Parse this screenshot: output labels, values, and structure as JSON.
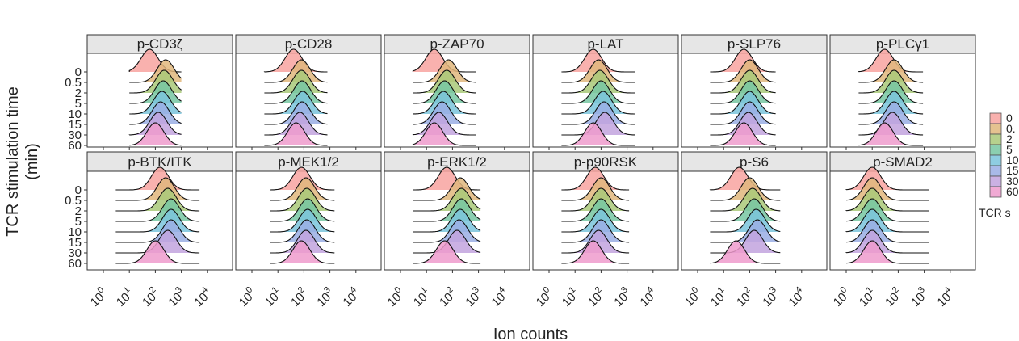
{
  "chart_data": {
    "type": "ridgeline",
    "xlabel": "Ion counts",
    "ylabel": "TCR stimulation time\n(min)",
    "x_scale": "log10",
    "x_ticks": [
      1,
      10,
      100,
      1000,
      10000
    ],
    "x_tick_base": "10",
    "x_tick_exponents": [
      "0",
      "1",
      "2",
      "3",
      "4"
    ],
    "time_levels": [
      "0",
      "0.5",
      "2",
      "5",
      "10",
      "15",
      "30",
      "60"
    ],
    "legend": {
      "title": "TCR s",
      "labels": [
        "0",
        "0.",
        "2",
        "5",
        "10",
        "15",
        "30",
        "60"
      ]
    },
    "colors": [
      "#f8a3a0",
      "#e0b77c",
      "#a9c979",
      "#77c7a2",
      "#7ac4dc",
      "#9aaee4",
      "#c2a3de",
      "#ef9bcd"
    ],
    "panels": [
      {
        "title": "p-CD3ζ",
        "row": 0,
        "col": 0,
        "range": [
          10,
          1000
        ],
        "peaks": [
          60,
          250,
          220,
          200,
          180,
          160,
          130,
          100
        ]
      },
      {
        "title": "p-CD28",
        "row": 0,
        "col": 1,
        "range": [
          3,
          800
        ],
        "peaks": [
          40,
          80,
          80,
          85,
          90,
          85,
          70,
          50
        ]
      },
      {
        "title": "p-ZAP70",
        "row": 0,
        "col": 2,
        "range": [
          3,
          800
        ],
        "peaks": [
          20,
          70,
          60,
          50,
          45,
          40,
          30,
          20
        ]
      },
      {
        "title": "p-LAT",
        "row": 0,
        "col": 3,
        "range": [
          3,
          2000
        ],
        "peaks": [
          50,
          80,
          90,
          100,
          120,
          130,
          140,
          50
        ]
      },
      {
        "title": "p-SLP76",
        "row": 0,
        "col": 4,
        "range": [
          3,
          1000
        ],
        "peaks": [
          60,
          100,
          100,
          100,
          100,
          100,
          90,
          60
        ]
      },
      {
        "title": "p-PLCγ1",
        "row": 0,
        "col": 5,
        "range": [
          3,
          900
        ],
        "peaks": [
          30,
          70,
          70,
          70,
          70,
          70,
          60,
          30
        ]
      },
      {
        "title": "p-BTK/ITK",
        "row": 1,
        "col": 0,
        "range": [
          3,
          5000
        ],
        "peaks": [
          150,
          250,
          300,
          400,
          400,
          400,
          300,
          100
        ]
      },
      {
        "title": "p-MEK1/2",
        "row": 1,
        "col": 1,
        "range": [
          5,
          1500
        ],
        "peaks": [
          80,
          120,
          130,
          140,
          140,
          130,
          120,
          80
        ]
      },
      {
        "title": "p-ERK1/2",
        "row": 1,
        "col": 2,
        "range": [
          3,
          1200
        ],
        "peaks": [
          60,
          200,
          220,
          220,
          200,
          180,
          150,
          50
        ]
      },
      {
        "title": "p-p90RSK",
        "row": 1,
        "col": 3,
        "range": [
          3,
          1200
        ],
        "peaks": [
          60,
          100,
          100,
          100,
          100,
          100,
          80,
          50
        ]
      },
      {
        "title": "p-S6",
        "row": 1,
        "col": 4,
        "range": [
          3,
          1500
        ],
        "peaks": [
          40,
          100,
          130,
          150,
          180,
          200,
          150,
          30
        ]
      },
      {
        "title": "p-SMAD2",
        "row": 1,
        "col": 5,
        "range": [
          1,
          1500
        ],
        "peaks": [
          10,
          10,
          10,
          10,
          10,
          10,
          10,
          10
        ]
      }
    ]
  }
}
